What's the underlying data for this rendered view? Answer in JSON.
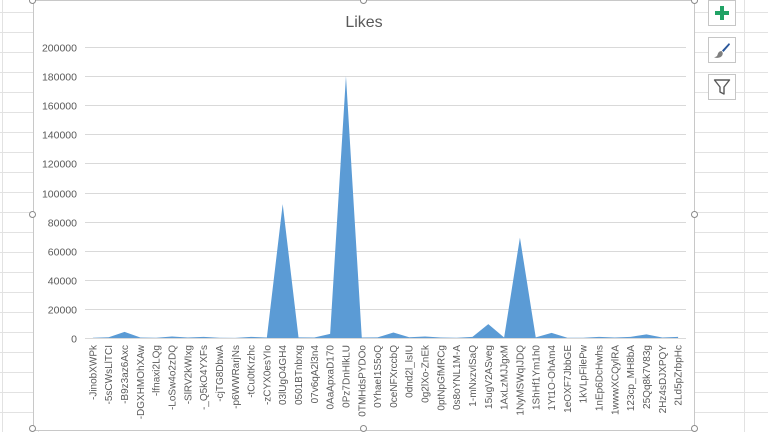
{
  "colors": {
    "series": "#5b9bd5",
    "gridline": "#d9d9d9",
    "axis_text": "#595959",
    "title_text": "#595959",
    "sheet_grid": "#e2e2e2",
    "plus_green": "#21a366",
    "brush_blue": "#2b579a"
  },
  "side_buttons": [
    {
      "name": "chart-elements-button",
      "icon": "plus-icon"
    },
    {
      "name": "chart-styles-button",
      "icon": "paintbrush-icon"
    },
    {
      "name": "chart-filters-button",
      "icon": "funnel-icon"
    }
  ],
  "chart_data": {
    "type": "area",
    "title": "Likes",
    "xlabel": "",
    "ylabel": "",
    "ylim": [
      0,
      200000
    ],
    "yticks": [
      0,
      20000,
      40000,
      60000,
      80000,
      100000,
      120000,
      140000,
      160000,
      180000,
      200000
    ],
    "grid": true,
    "legend": "none",
    "categories": [
      "-JinobXWPk",
      "-5sCWsLlTCI",
      "-B9z3az6Axc",
      "-DGXHMOhXAw",
      "-lfnaxi2LQg",
      "-LoSw4o2zDQ",
      "-SlRV2kWIxg",
      "-_Q5kO4YXFs",
      "-cjTG8DbwA",
      "-p6WWRarjNs",
      "-tCu0tKrzhc",
      "-zCYX0esYIo",
      "03lUgO4GH4",
      "0501BTnbrxg",
      "07v6qA2l3n4",
      "0AaApxaD170",
      "0Pz7DnHlkLU",
      "0TMHdsPYDOo",
      "0YhaeI1S5oQ",
      "0ceNFXrccbQ",
      "0dnd2l_lsIU",
      "0g2lXo-ZnEk",
      "0ptNpGfMRCg",
      "0s8oYNL1M-A",
      "1-mNxzvlSaQ",
      "15ugV2ASveg",
      "1AxLzMJJgxM",
      "1NyMSWqIJDQ",
      "1ShHf1Ym1h0",
      "1Yt1O-OhAm4",
      "1eOXF7JbbGE",
      "1kVLpFilePw",
      "1nEp6DcHwhs",
      "1wwwXCQylRA",
      "123cp_MH8bA",
      "25Qq8k7V83g",
      "2Hz4sDJXPQY",
      "2Ld5pZrbpHc"
    ],
    "values": [
      200,
      500,
      4200,
      300,
      200,
      1000,
      300,
      800,
      200,
      100,
      800,
      300,
      92000,
      400,
      300,
      2800,
      180000,
      300,
      400,
      3800,
      500,
      1000,
      300,
      200,
      800,
      9500,
      300,
      69000,
      400,
      3500,
      200,
      200,
      800,
      300,
      800,
      2500,
      300,
      800
    ]
  }
}
